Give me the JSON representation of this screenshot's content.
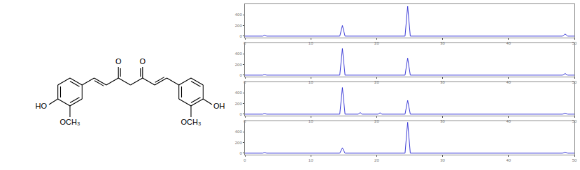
{
  "structure": {
    "left_hydroxyl": "HO",
    "left_methoxy": "OCH₃",
    "right_hydroxyl": "OH",
    "right_methoxy": "OCH₃",
    "carbonyl_1": "O",
    "carbonyl_2": "O"
  },
  "chart_data": [
    {
      "type": "line",
      "color": "#3b3bd6",
      "grid": false,
      "x": [
        0,
        2.7,
        3,
        3.3,
        14.4,
        14.8,
        15.2,
        24.3,
        24.7,
        25.1,
        48.2,
        48.6,
        49,
        50
      ],
      "values": [
        0,
        0,
        20,
        0,
        0,
        200,
        0,
        0,
        560,
        0,
        0,
        40,
        0,
        0
      ],
      "xlim": [
        0,
        50
      ],
      "xticks": [
        0,
        10,
        20,
        30,
        40,
        50
      ],
      "ylim": [
        -30,
        600
      ],
      "yticks": [
        0,
        200,
        400
      ]
    },
    {
      "type": "line",
      "color": "#3b3bd6",
      "grid": false,
      "x": [
        0,
        2.7,
        3,
        3.3,
        14.4,
        14.8,
        15.2,
        24.3,
        24.7,
        25.1,
        48.2,
        48.6,
        49,
        50
      ],
      "values": [
        0,
        0,
        15,
        0,
        0,
        500,
        0,
        0,
        320,
        0,
        0,
        30,
        0,
        0
      ],
      "xlim": [
        0,
        50
      ],
      "xticks": [
        0,
        10,
        20,
        30,
        40,
        50
      ],
      "ylim": [
        -30,
        600
      ],
      "yticks": [
        0,
        200,
        400
      ]
    },
    {
      "type": "line",
      "color": "#3b3bd6",
      "grid": false,
      "x": [
        0,
        2.7,
        3,
        3.3,
        14.4,
        14.8,
        15.2,
        17.2,
        17.5,
        17.8,
        20.2,
        20.5,
        20.8,
        24.3,
        24.7,
        25.1,
        48.2,
        48.6,
        49,
        50
      ],
      "values": [
        0,
        0,
        15,
        0,
        0,
        500,
        0,
        0,
        30,
        0,
        0,
        25,
        0,
        0,
        260,
        0,
        0,
        20,
        0,
        0
      ],
      "xlim": [
        0,
        50
      ],
      "xticks": [
        0,
        10,
        20,
        30,
        40,
        50
      ],
      "ylim": [
        -30,
        600
      ],
      "yticks": [
        0,
        200,
        400
      ]
    },
    {
      "type": "line",
      "color": "#3b3bd6",
      "grid": false,
      "x": [
        0,
        2.7,
        3,
        3.3,
        14.4,
        14.8,
        15.2,
        24.3,
        24.7,
        25.1,
        48.2,
        48.6,
        49,
        50
      ],
      "values": [
        0,
        0,
        15,
        0,
        0,
        100,
        0,
        0,
        580,
        0,
        0,
        20,
        0,
        0
      ],
      "xlim": [
        0,
        50
      ],
      "xticks": [
        0,
        10,
        20,
        30,
        40,
        50
      ],
      "ylim": [
        -30,
        600
      ],
      "yticks": [
        0,
        200,
        400
      ]
    }
  ]
}
